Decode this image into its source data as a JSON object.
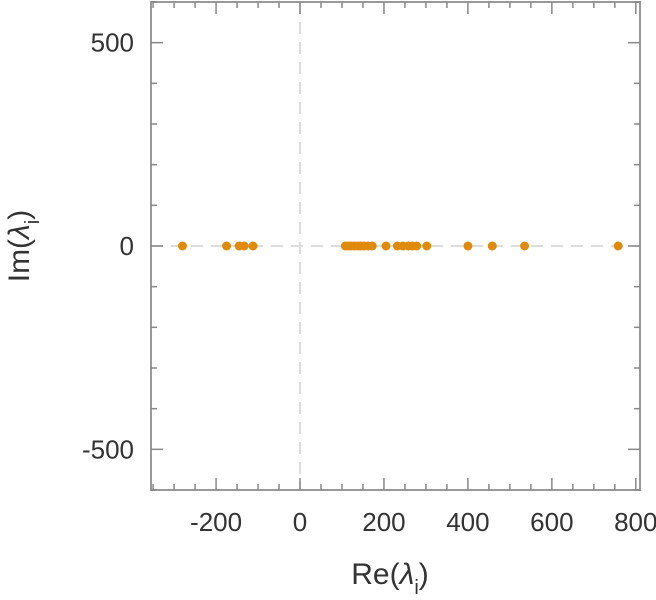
{
  "chart_data": {
    "type": "scatter",
    "xlabel": {
      "main": "Re(",
      "symbol": "λ",
      "sub": "i",
      "close": ")"
    },
    "ylabel": {
      "main": "Im(",
      "symbol": "λ",
      "sub": "i",
      "close": ")"
    },
    "xlim": [
      -355,
      810
    ],
    "ylim": [
      -600,
      600
    ],
    "xticks": [
      -200,
      0,
      200,
      400,
      600,
      800
    ],
    "yticks": [
      -500,
      0,
      500
    ],
    "xtick_labels": [
      "-200",
      "0",
      "200",
      "400",
      "600",
      "800"
    ],
    "ytick_labels": [
      "-500",
      "0",
      "500"
    ],
    "zero_lines": true,
    "grid": false,
    "marker_color": "#e08a0b",
    "zero_line_color": "#dddddd",
    "frame_color": "#999999",
    "series": [
      {
        "x": [
          -280,
          -175,
          -145,
          -133,
          -112,
          108,
          115,
          122,
          130,
          138,
          145,
          153,
          162,
          172,
          205,
          232,
          245,
          258,
          268,
          278,
          302,
          400,
          458,
          535,
          758
        ],
        "y": [
          0,
          0,
          0,
          0,
          0,
          0,
          0,
          0,
          0,
          0,
          0,
          0,
          0,
          0,
          0,
          0,
          0,
          0,
          0,
          0,
          0,
          0,
          0,
          0,
          0
        ]
      }
    ]
  }
}
